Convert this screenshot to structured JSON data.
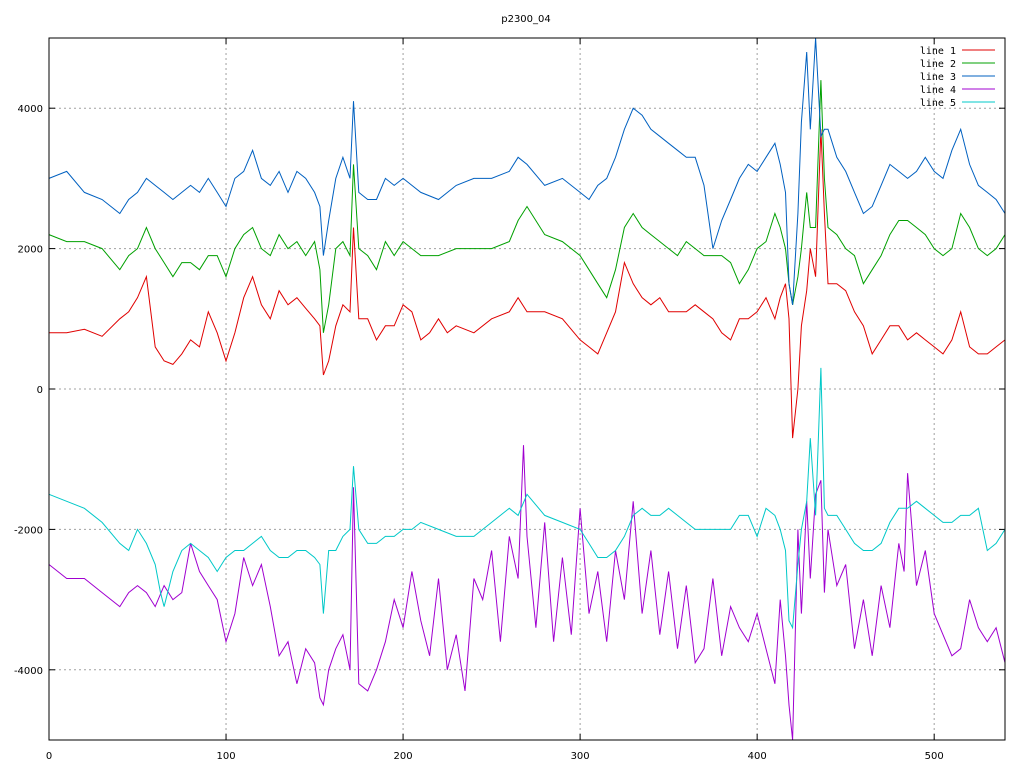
{
  "chart_data": {
    "type": "line",
    "title": "p2300_04",
    "xlabel": "",
    "ylabel": "",
    "xlim": [
      0,
      540
    ],
    "ylim": [
      -5000,
      5000
    ],
    "grid": true,
    "legend_position": "top-right",
    "x_ticks": [
      0,
      100,
      200,
      300,
      400,
      500
    ],
    "y_ticks": [
      -4000,
      -2000,
      0,
      2000,
      4000
    ],
    "x_tick_labels": [
      "0",
      "100",
      "200",
      "300",
      "400",
      "500"
    ],
    "y_tick_labels": [
      "-4000",
      "-2000",
      "0",
      "2000",
      "4000"
    ],
    "series": [
      {
        "name": "line 1",
        "color": "#e00000",
        "x": [
          0,
          10,
          20,
          30,
          40,
          45,
          50,
          55,
          60,
          65,
          70,
          75,
          80,
          85,
          90,
          95,
          100,
          105,
          110,
          115,
          120,
          125,
          130,
          135,
          140,
          145,
          150,
          153,
          155,
          158,
          162,
          166,
          170,
          172,
          175,
          180,
          185,
          190,
          195,
          200,
          205,
          210,
          215,
          220,
          225,
          230,
          240,
          250,
          260,
          265,
          270,
          280,
          290,
          300,
          305,
          310,
          315,
          320,
          325,
          330,
          335,
          340,
          345,
          350,
          355,
          360,
          365,
          370,
          375,
          380,
          385,
          390,
          395,
          400,
          405,
          410,
          413,
          416,
          418,
          420,
          423,
          425,
          428,
          430,
          433,
          436,
          438,
          440,
          445,
          450,
          455,
          460,
          465,
          470,
          475,
          480,
          485,
          490,
          495,
          500,
          505,
          510,
          515,
          520,
          525,
          530,
          535,
          540
        ],
        "values": [
          800,
          800,
          850,
          750,
          1000,
          1100,
          1300,
          1600,
          600,
          400,
          350,
          500,
          700,
          600,
          1100,
          800,
          400,
          800,
          1300,
          1600,
          1200,
          1000,
          1400,
          1200,
          1300,
          1150,
          1000,
          900,
          200,
          400,
          900,
          1200,
          1100,
          2300,
          1000,
          1000,
          700,
          900,
          900,
          1200,
          1100,
          700,
          800,
          1000,
          800,
          900,
          800,
          1000,
          1100,
          1300,
          1100,
          1100,
          1000,
          700,
          600,
          500,
          800,
          1100,
          1800,
          1500,
          1300,
          1200,
          1300,
          1100,
          1100,
          1100,
          1200,
          1100,
          1000,
          800,
          700,
          1000,
          1000,
          1100,
          1300,
          1000,
          1300,
          1500,
          1000,
          -700,
          0,
          900,
          1400,
          2000,
          1600,
          3700,
          2500,
          1500,
          1500,
          1400,
          1100,
          900,
          500,
          700,
          900,
          900,
          700,
          800,
          700,
          600,
          500,
          700,
          1100,
          600,
          500,
          500,
          600,
          700
        ]
      },
      {
        "name": "line 2",
        "color": "#00a000",
        "x": [
          0,
          10,
          20,
          30,
          40,
          45,
          50,
          55,
          60,
          65,
          70,
          75,
          80,
          85,
          90,
          95,
          100,
          105,
          110,
          115,
          120,
          125,
          130,
          135,
          140,
          145,
          150,
          153,
          155,
          158,
          162,
          166,
          170,
          172,
          175,
          180,
          185,
          190,
          195,
          200,
          205,
          210,
          220,
          230,
          240,
          250,
          260,
          265,
          270,
          280,
          290,
          300,
          305,
          310,
          315,
          320,
          325,
          330,
          335,
          340,
          345,
          350,
          355,
          360,
          365,
          370,
          375,
          380,
          385,
          390,
          395,
          400,
          405,
          410,
          413,
          416,
          418,
          420,
          423,
          425,
          428,
          430,
          433,
          436,
          438,
          440,
          445,
          450,
          455,
          460,
          465,
          470,
          475,
          480,
          485,
          490,
          495,
          500,
          505,
          510,
          515,
          520,
          525,
          530,
          535,
          540
        ],
        "values": [
          2200,
          2100,
          2100,
          2000,
          1700,
          1900,
          2000,
          2300,
          2000,
          1800,
          1600,
          1800,
          1800,
          1700,
          1900,
          1900,
          1600,
          2000,
          2200,
          2300,
          2000,
          1900,
          2200,
          2000,
          2100,
          1900,
          2100,
          1700,
          800,
          1200,
          2000,
          2100,
          1900,
          3200,
          2000,
          1900,
          1700,
          2100,
          1900,
          2100,
          2000,
          1900,
          1900,
          2000,
          2000,
          2000,
          2100,
          2400,
          2600,
          2200,
          2100,
          1900,
          1700,
          1500,
          1300,
          1700,
          2300,
          2500,
          2300,
          2200,
          2100,
          2000,
          1900,
          2100,
          2000,
          1900,
          1900,
          1900,
          1800,
          1500,
          1700,
          2000,
          2100,
          2500,
          2300,
          2000,
          1500,
          1200,
          1600,
          2000,
          2800,
          2300,
          2300,
          4400,
          3000,
          2300,
          2200,
          2000,
          1900,
          1500,
          1700,
          1900,
          2200,
          2400,
          2400,
          2300,
          2200,
          2000,
          1900,
          2000,
          2500,
          2300,
          2000,
          1900,
          2000,
          2200
        ]
      },
      {
        "name": "line 3",
        "color": "#0060c0",
        "x": [
          0,
          10,
          20,
          30,
          40,
          45,
          50,
          55,
          60,
          65,
          70,
          75,
          80,
          85,
          90,
          95,
          100,
          105,
          110,
          115,
          120,
          125,
          130,
          135,
          140,
          145,
          150,
          153,
          155,
          158,
          162,
          166,
          170,
          172,
          175,
          180,
          185,
          190,
          195,
          200,
          205,
          210,
          220,
          230,
          240,
          250,
          260,
          265,
          270,
          280,
          290,
          300,
          305,
          310,
          315,
          320,
          325,
          330,
          335,
          340,
          345,
          350,
          355,
          360,
          365,
          370,
          375,
          380,
          385,
          390,
          395,
          400,
          405,
          410,
          413,
          416,
          418,
          420,
          423,
          425,
          428,
          430,
          433,
          436,
          438,
          440,
          445,
          450,
          455,
          460,
          465,
          470,
          475,
          480,
          485,
          490,
          495,
          500,
          505,
          510,
          515,
          520,
          525,
          530,
          535,
          540
        ],
        "values": [
          3000,
          3100,
          2800,
          2700,
          2500,
          2700,
          2800,
          3000,
          2900,
          2800,
          2700,
          2800,
          2900,
          2800,
          3000,
          2800,
          2600,
          3000,
          3100,
          3400,
          3000,
          2900,
          3100,
          2800,
          3100,
          3000,
          2800,
          2600,
          1900,
          2400,
          3000,
          3300,
          3000,
          4100,
          2800,
          2700,
          2700,
          3000,
          2900,
          3000,
          2900,
          2800,
          2700,
          2900,
          3000,
          3000,
          3100,
          3300,
          3200,
          2900,
          3000,
          2800,
          2700,
          2900,
          3000,
          3300,
          3700,
          4000,
          3900,
          3700,
          3600,
          3500,
          3400,
          3300,
          3300,
          2900,
          2000,
          2400,
          2700,
          3000,
          3200,
          3100,
          3300,
          3500,
          3200,
          2800,
          1500,
          1200,
          2500,
          3800,
          4800,
          3700,
          5000,
          3600,
          3700,
          3700,
          3300,
          3100,
          2800,
          2500,
          2600,
          2900,
          3200,
          3100,
          3000,
          3100,
          3300,
          3100,
          3000,
          3400,
          3700,
          3200,
          2900,
          2800,
          2700,
          2500
        ]
      },
      {
        "name": "line 4",
        "color": "#a000d0",
        "x": [
          0,
          10,
          20,
          30,
          40,
          45,
          50,
          55,
          60,
          65,
          70,
          75,
          80,
          85,
          90,
          95,
          100,
          105,
          110,
          115,
          120,
          125,
          130,
          135,
          140,
          145,
          150,
          153,
          155,
          158,
          162,
          166,
          170,
          172,
          175,
          180,
          185,
          190,
          195,
          200,
          205,
          210,
          215,
          220,
          225,
          230,
          235,
          240,
          245,
          250,
          255,
          260,
          265,
          268,
          270,
          275,
          280,
          285,
          290,
          295,
          300,
          305,
          310,
          315,
          320,
          325,
          330,
          335,
          340,
          345,
          350,
          355,
          360,
          365,
          370,
          375,
          380,
          385,
          390,
          395,
          400,
          405,
          410,
          413,
          416,
          418,
          420,
          423,
          425,
          428,
          430,
          433,
          436,
          438,
          440,
          445,
          450,
          455,
          460,
          465,
          470,
          475,
          480,
          483,
          485,
          490,
          495,
          500,
          505,
          510,
          515,
          520,
          525,
          530,
          535,
          540
        ],
        "values": [
          -2500,
          -2700,
          -2700,
          -2900,
          -3100,
          -2900,
          -2800,
          -2900,
          -3100,
          -2800,
          -3000,
          -2900,
          -2200,
          -2600,
          -2800,
          -3000,
          -3600,
          -3200,
          -2400,
          -2800,
          -2500,
          -3100,
          -3800,
          -3600,
          -4200,
          -3700,
          -3900,
          -4400,
          -4500,
          -4000,
          -3700,
          -3500,
          -4000,
          -1400,
          -4200,
          -4300,
          -4000,
          -3600,
          -3000,
          -3400,
          -2600,
          -3300,
          -3800,
          -2700,
          -4000,
          -3500,
          -4300,
          -2700,
          -3000,
          -2300,
          -3600,
          -2100,
          -2700,
          -800,
          -2100,
          -3400,
          -1900,
          -3600,
          -2400,
          -3500,
          -1700,
          -3200,
          -2600,
          -3600,
          -2300,
          -3000,
          -1600,
          -3200,
          -2300,
          -3500,
          -2600,
          -3700,
          -2800,
          -3900,
          -3700,
          -2700,
          -3800,
          -3100,
          -3400,
          -3600,
          -3200,
          -3700,
          -4200,
          -3000,
          -3800,
          -4500,
          -5000,
          -2000,
          -3200,
          -1600,
          -2700,
          -1500,
          -1300,
          -2900,
          -2000,
          -2800,
          -2500,
          -3700,
          -3000,
          -3800,
          -2800,
          -3400,
          -2200,
          -2600,
          -1200,
          -2800,
          -2300,
          -3200,
          -3500,
          -3800,
          -3700,
          -3000,
          -3400,
          -3600,
          -3400,
          -3900
        ]
      },
      {
        "name": "line 5",
        "color": "#00c8c8",
        "x": [
          0,
          10,
          20,
          30,
          40,
          45,
          50,
          55,
          60,
          63,
          65,
          68,
          70,
          75,
          80,
          85,
          90,
          95,
          100,
          105,
          110,
          115,
          120,
          125,
          130,
          135,
          140,
          145,
          150,
          153,
          155,
          158,
          162,
          166,
          170,
          172,
          175,
          180,
          185,
          190,
          195,
          200,
          205,
          210,
          220,
          230,
          240,
          250,
          260,
          265,
          270,
          280,
          290,
          300,
          305,
          310,
          315,
          320,
          325,
          330,
          335,
          340,
          345,
          350,
          355,
          360,
          365,
          370,
          375,
          380,
          385,
          390,
          395,
          400,
          405,
          410,
          413,
          416,
          418,
          420,
          423,
          425,
          428,
          430,
          433,
          436,
          438,
          440,
          445,
          450,
          455,
          460,
          465,
          470,
          475,
          480,
          485,
          490,
          495,
          500,
          505,
          510,
          515,
          520,
          525,
          530,
          535,
          540
        ],
        "values": [
          -1500,
          -1600,
          -1700,
          -1900,
          -2200,
          -2300,
          -2000,
          -2200,
          -2500,
          -2900,
          -3100,
          -2800,
          -2600,
          -2300,
          -2200,
          -2300,
          -2400,
          -2600,
          -2400,
          -2300,
          -2300,
          -2200,
          -2100,
          -2300,
          -2400,
          -2400,
          -2300,
          -2300,
          -2400,
          -2500,
          -3200,
          -2300,
          -2300,
          -2100,
          -2000,
          -1100,
          -2000,
          -2200,
          -2200,
          -2100,
          -2100,
          -2000,
          -2000,
          -1900,
          -2000,
          -2100,
          -2100,
          -1900,
          -1700,
          -1800,
          -1500,
          -1800,
          -1900,
          -2000,
          -2200,
          -2400,
          -2400,
          -2300,
          -2100,
          -1800,
          -1700,
          -1800,
          -1800,
          -1700,
          -1800,
          -1900,
          -2000,
          -2000,
          -2000,
          -2000,
          -2000,
          -1800,
          -1800,
          -2100,
          -1700,
          -1800,
          -2000,
          -2300,
          -3300,
          -3400,
          -2500,
          -2000,
          -1600,
          -700,
          -1800,
          300,
          -1700,
          -1800,
          -1800,
          -2000,
          -2200,
          -2300,
          -2300,
          -2200,
          -1900,
          -1700,
          -1700,
          -1600,
          -1700,
          -1800,
          -1900,
          -1900,
          -1800,
          -1800,
          -1700,
          -2300,
          -2200,
          -2000
        ]
      }
    ]
  }
}
